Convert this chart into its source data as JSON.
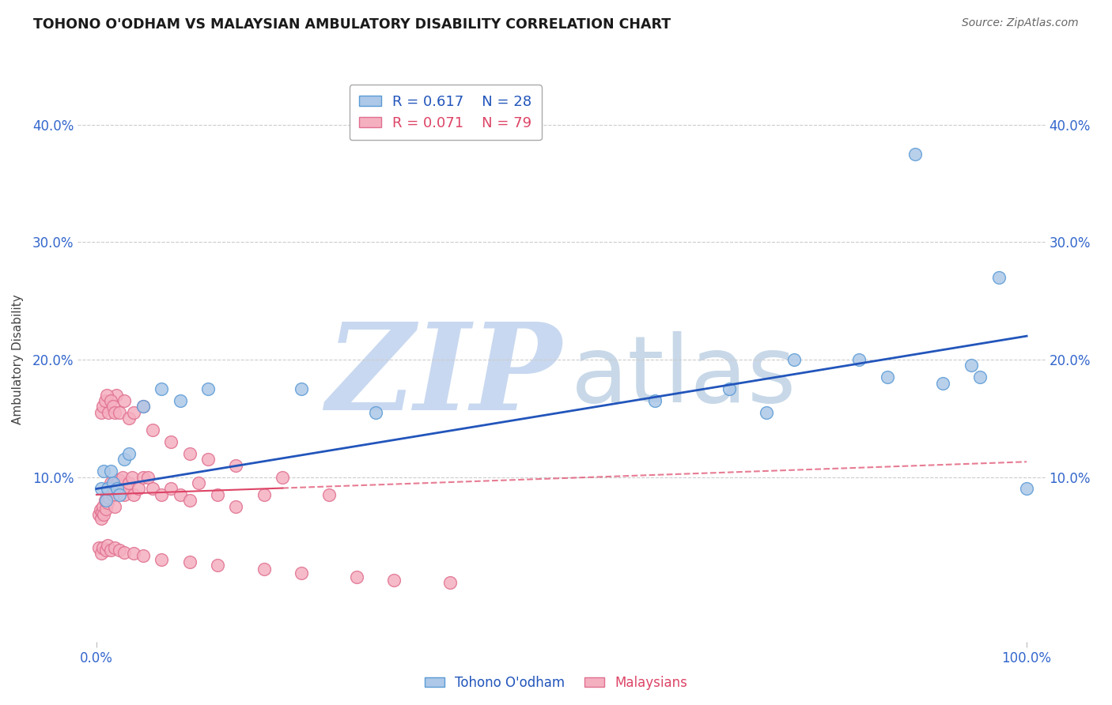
{
  "title": "TOHONO O'ODHAM VS MALAYSIAN AMBULATORY DISABILITY CORRELATION CHART",
  "source": "Source: ZipAtlas.com",
  "ylabel": "Ambulatory Disability",
  "xlim": [
    0.0,
    1.0
  ],
  "ylim": [
    -0.04,
    0.44
  ],
  "yticks": [
    0.1,
    0.2,
    0.3,
    0.4
  ],
  "ytick_labels": [
    "10.0%",
    "20.0%",
    "30.0%",
    "40.0%"
  ],
  "xticks": [
    0.0,
    1.0
  ],
  "xtick_labels": [
    "0.0%",
    "100.0%"
  ],
  "background_color": "#ffffff",
  "grid_color": "#cccccc",
  "tohono_color": "#adc8e8",
  "malaysian_color": "#f5b0c0",
  "tohono_edge_color": "#5b9bd5",
  "malaysian_edge_color": "#e07090",
  "tohono_line_color": "#2255bb",
  "malaysian_line_color": "#dd4466",
  "legend_r1": "R = 0.617",
  "legend_n1": "N = 28",
  "legend_r2": "R = 0.071",
  "legend_n2": "N = 79",
  "legend_label1": "Tohono O'odham",
  "legend_label2": "Malaysians",
  "tohono_x": [
    0.005,
    0.008,
    0.01,
    0.012,
    0.015,
    0.018,
    0.022,
    0.025,
    0.03,
    0.035,
    0.05,
    0.07,
    0.09,
    0.12,
    0.22,
    0.3,
    0.6,
    0.68,
    0.72,
    0.75,
    0.82,
    0.85,
    0.88,
    0.91,
    0.94,
    0.95,
    0.97,
    1.0
  ],
  "tohono_y": [
    0.09,
    0.105,
    0.08,
    0.09,
    0.105,
    0.095,
    0.09,
    0.085,
    0.115,
    0.12,
    0.16,
    0.175,
    0.165,
    0.175,
    0.175,
    0.155,
    0.165,
    0.175,
    0.155,
    0.2,
    0.2,
    0.185,
    0.375,
    0.18,
    0.195,
    0.185,
    0.27,
    0.09
  ],
  "malaysian_x": [
    0.003,
    0.004,
    0.005,
    0.006,
    0.007,
    0.008,
    0.009,
    0.01,
    0.011,
    0.012,
    0.013,
    0.014,
    0.015,
    0.016,
    0.017,
    0.018,
    0.019,
    0.02,
    0.021,
    0.022,
    0.024,
    0.026,
    0.028,
    0.03,
    0.032,
    0.035,
    0.038,
    0.04,
    0.045,
    0.05,
    0.055,
    0.06,
    0.07,
    0.08,
    0.09,
    0.1,
    0.11,
    0.13,
    0.15,
    0.18,
    0.005,
    0.007,
    0.009,
    0.011,
    0.013,
    0.015,
    0.018,
    0.02,
    0.025,
    0.03,
    0.035,
    0.04,
    0.05,
    0.06,
    0.08,
    0.1,
    0.12,
    0.15,
    0.2,
    0.25,
    0.003,
    0.005,
    0.007,
    0.01,
    0.012,
    0.015,
    0.02,
    0.025,
    0.03,
    0.04,
    0.05,
    0.07,
    0.1,
    0.13,
    0.18,
    0.22,
    0.28,
    0.32,
    0.38
  ],
  "malaysian_y": [
    0.068,
    0.072,
    0.065,
    0.07,
    0.075,
    0.068,
    0.08,
    0.073,
    0.085,
    0.078,
    0.09,
    0.082,
    0.095,
    0.088,
    0.092,
    0.085,
    0.09,
    0.075,
    0.17,
    0.095,
    0.098,
    0.092,
    0.1,
    0.085,
    0.09,
    0.095,
    0.1,
    0.085,
    0.09,
    0.1,
    0.1,
    0.09,
    0.085,
    0.09,
    0.085,
    0.08,
    0.095,
    0.085,
    0.075,
    0.085,
    0.155,
    0.16,
    0.165,
    0.17,
    0.155,
    0.165,
    0.16,
    0.155,
    0.155,
    0.165,
    0.15,
    0.155,
    0.16,
    0.14,
    0.13,
    0.12,
    0.115,
    0.11,
    0.1,
    0.085,
    0.04,
    0.035,
    0.04,
    0.038,
    0.042,
    0.038,
    0.04,
    0.038,
    0.036,
    0.035,
    0.033,
    0.03,
    0.028,
    0.025,
    0.022,
    0.018,
    0.015,
    0.012,
    0.01
  ],
  "watermark_zip": "ZIP",
  "watermark_atlas": "atlas",
  "watermark_color_zip": "#c8d8f0",
  "watermark_color_atlas": "#c8d8e8",
  "watermark_fontsize": 80
}
